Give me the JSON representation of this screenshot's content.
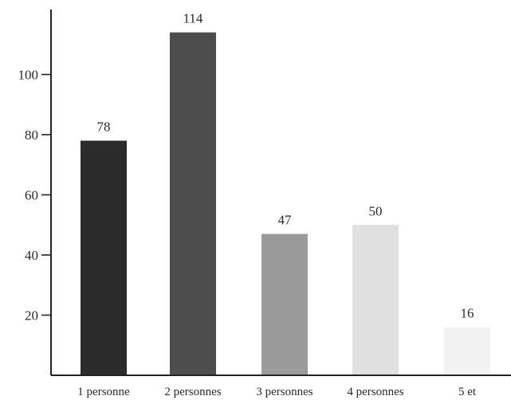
{
  "chart_data": {
    "type": "bar",
    "categories": [
      "1 personne",
      "2 personnes",
      "3 personnes",
      "4 personnes",
      "5 et"
    ],
    "values": [
      78,
      114,
      47,
      50,
      16
    ],
    "value_labels": [
      "78",
      "114",
      "47",
      "50",
      "16"
    ],
    "bar_colors": [
      "#2b2b2b",
      "#4d4d4d",
      "#9a9a9a",
      "#e0e0e0",
      "#f2f2f2"
    ],
    "yticks": [
      20,
      40,
      60,
      80,
      100
    ],
    "ylim": [
      0,
      120
    ],
    "grid": false,
    "legend": "none"
  }
}
